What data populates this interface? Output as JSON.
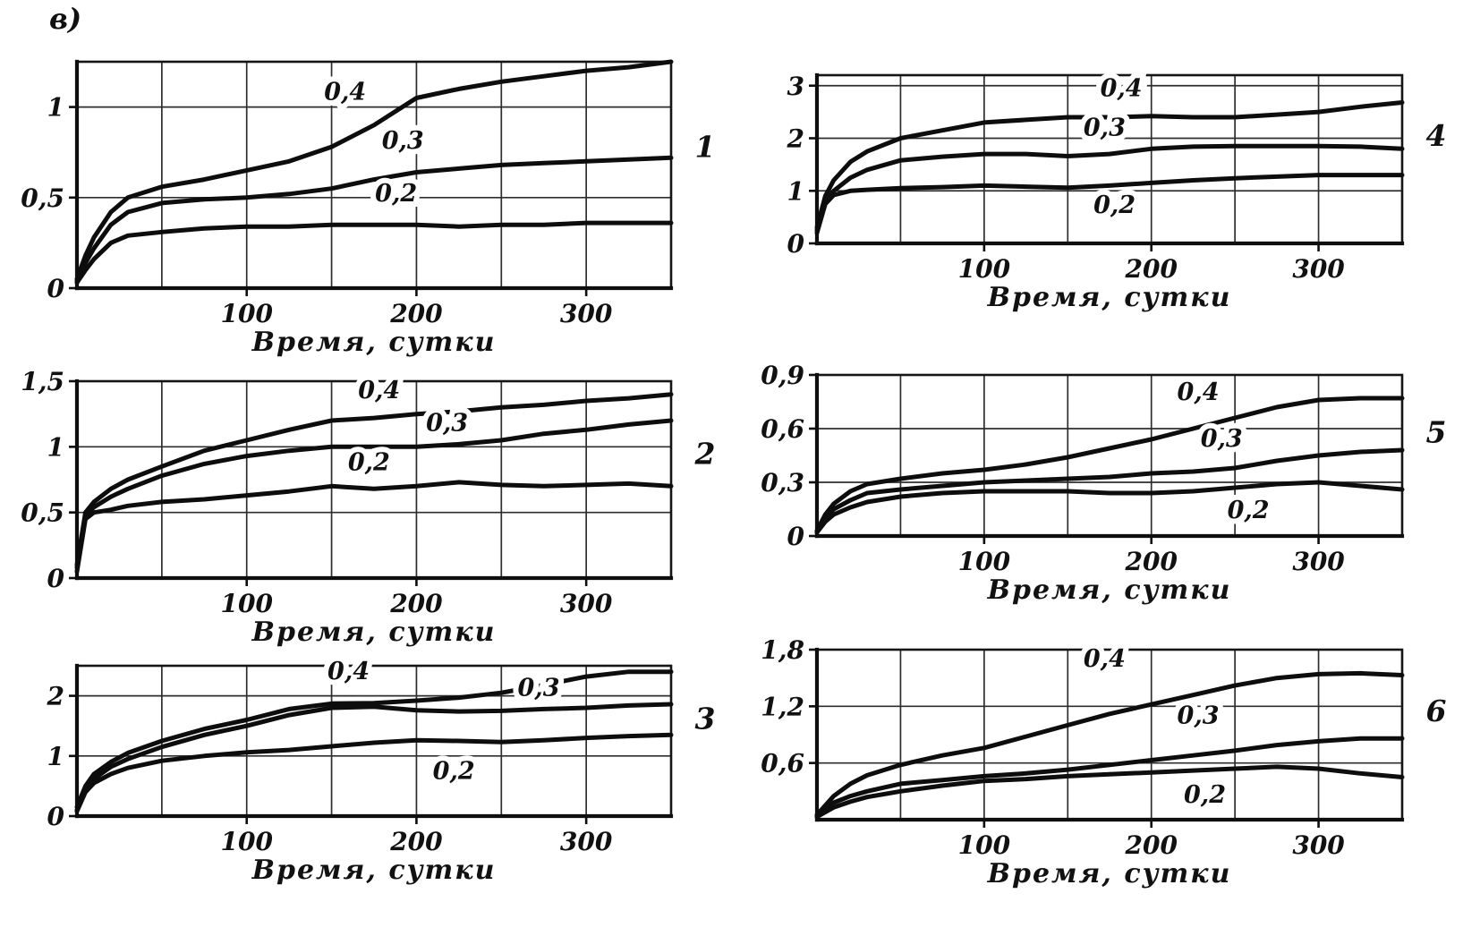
{
  "figure": {
    "panel_label": "в)"
  },
  "chart_data": [
    {
      "id": 1,
      "type": "line",
      "chart_label": "1",
      "title": "",
      "xlabel": "Время, сутки",
      "ylabel": "",
      "xlim": [
        0,
        350
      ],
      "ylim": [
        0,
        1.25
      ],
      "xticks": [
        100,
        200,
        300
      ],
      "yticks": [
        0,
        0.5,
        1
      ],
      "ytick_labels": [
        "0",
        "0,5",
        "1"
      ],
      "x_grid_step": 50,
      "grid": true,
      "legend_position": "none",
      "x": [
        0,
        5,
        10,
        20,
        30,
        50,
        75,
        100,
        125,
        150,
        175,
        200,
        225,
        250,
        275,
        300,
        325,
        350
      ],
      "series": [
        {
          "name": "0,4",
          "values": [
            0.05,
            0.18,
            0.28,
            0.42,
            0.5,
            0.56,
            0.6,
            0.65,
            0.7,
            0.78,
            0.9,
            1.05,
            1.1,
            1.14,
            1.17,
            1.2,
            1.22,
            1.25
          ],
          "label_xy": [
            158,
            1.04
          ]
        },
        {
          "name": "0,3",
          "values": [
            0.04,
            0.14,
            0.22,
            0.35,
            0.42,
            0.47,
            0.49,
            0.5,
            0.52,
            0.55,
            0.6,
            0.64,
            0.66,
            0.68,
            0.69,
            0.7,
            0.71,
            0.72
          ],
          "label_xy": [
            192,
            0.77
          ]
        },
        {
          "name": "0,2",
          "values": [
            0.03,
            0.1,
            0.16,
            0.25,
            0.29,
            0.31,
            0.33,
            0.34,
            0.34,
            0.35,
            0.35,
            0.35,
            0.34,
            0.35,
            0.35,
            0.36,
            0.36,
            0.36
          ],
          "label_xy": [
            188,
            0.48
          ]
        }
      ]
    },
    {
      "id": 2,
      "type": "line",
      "chart_label": "2",
      "title": "",
      "xlabel": "Время, сутки",
      "ylabel": "",
      "xlim": [
        0,
        350
      ],
      "ylim": [
        0,
        1.5
      ],
      "xticks": [
        100,
        200,
        300
      ],
      "yticks": [
        0,
        0.5,
        1,
        1.5
      ],
      "ytick_labels": [
        "0",
        "0,5",
        "1",
        "1,5"
      ],
      "x_grid_step": 50,
      "grid": true,
      "legend_position": "none",
      "x": [
        0,
        5,
        10,
        20,
        30,
        50,
        75,
        100,
        125,
        150,
        175,
        200,
        225,
        250,
        275,
        300,
        325,
        350
      ],
      "series": [
        {
          "name": "0,4",
          "values": [
            0.1,
            0.5,
            0.58,
            0.68,
            0.75,
            0.85,
            0.97,
            1.05,
            1.13,
            1.2,
            1.22,
            1.25,
            1.27,
            1.3,
            1.32,
            1.35,
            1.37,
            1.4
          ],
          "label_xy": [
            178,
            1.37
          ]
        },
        {
          "name": "0,3",
          "values": [
            0.08,
            0.48,
            0.54,
            0.62,
            0.68,
            0.78,
            0.87,
            0.93,
            0.97,
            1.0,
            1.0,
            1.0,
            1.02,
            1.05,
            1.1,
            1.13,
            1.17,
            1.2
          ],
          "label_xy": [
            218,
            1.12
          ]
        },
        {
          "name": "0,2",
          "values": [
            0.05,
            0.45,
            0.5,
            0.52,
            0.55,
            0.58,
            0.6,
            0.63,
            0.66,
            0.7,
            0.68,
            0.7,
            0.73,
            0.71,
            0.7,
            0.71,
            0.72,
            0.7
          ],
          "label_xy": [
            172,
            0.82
          ]
        }
      ]
    },
    {
      "id": 3,
      "type": "line",
      "chart_label": "3",
      "title": "",
      "xlabel": "Время, сутки",
      "ylabel": "",
      "xlim": [
        0,
        350
      ],
      "ylim": [
        0,
        2.5
      ],
      "xticks": [
        100,
        200,
        300
      ],
      "yticks": [
        0,
        1,
        2
      ],
      "ytick_labels": [
        "0",
        "1",
        "2"
      ],
      "x_grid_step": 50,
      "grid": true,
      "legend_position": "none",
      "x": [
        0,
        5,
        10,
        20,
        30,
        50,
        75,
        100,
        125,
        150,
        175,
        200,
        225,
        250,
        275,
        300,
        325,
        350
      ],
      "series": [
        {
          "name": "0,4",
          "values": [
            0.15,
            0.5,
            0.7,
            0.9,
            1.05,
            1.25,
            1.45,
            1.6,
            1.78,
            1.87,
            1.88,
            1.92,
            1.97,
            2.05,
            2.18,
            2.32,
            2.4,
            2.4
          ],
          "label_xy": [
            160,
            2.28
          ]
        },
        {
          "name": "0,3",
          "values": [
            0.1,
            0.45,
            0.62,
            0.82,
            0.95,
            1.15,
            1.35,
            1.5,
            1.68,
            1.8,
            1.82,
            1.76,
            1.74,
            1.75,
            1.78,
            1.8,
            1.84,
            1.86
          ],
          "label_xy": [
            272,
            2.0
          ]
        },
        {
          "name": "0,2",
          "values": [
            0.08,
            0.4,
            0.55,
            0.7,
            0.8,
            0.92,
            1.0,
            1.06,
            1.1,
            1.16,
            1.22,
            1.26,
            1.25,
            1.23,
            1.26,
            1.3,
            1.33,
            1.35
          ],
          "label_xy": [
            222,
            0.62
          ]
        }
      ]
    },
    {
      "id": 4,
      "type": "line",
      "chart_label": "4",
      "title": "",
      "xlabel": "Время, сутки",
      "ylabel": "",
      "xlim": [
        0,
        350
      ],
      "ylim": [
        0,
        3.2
      ],
      "xticks": [
        100,
        200,
        300
      ],
      "yticks": [
        0,
        1,
        2,
        3
      ],
      "ytick_labels": [
        "0",
        "1",
        "2",
        "3"
      ],
      "x_grid_step": 50,
      "grid": true,
      "legend_position": "none",
      "x": [
        0,
        5,
        10,
        20,
        30,
        50,
        75,
        100,
        125,
        150,
        175,
        200,
        225,
        250,
        275,
        300,
        325,
        350
      ],
      "series": [
        {
          "name": "0,4",
          "values": [
            0.3,
            0.9,
            1.2,
            1.55,
            1.75,
            2.0,
            2.15,
            2.3,
            2.35,
            2.4,
            2.4,
            2.42,
            2.4,
            2.4,
            2.45,
            2.5,
            2.6,
            2.68
          ],
          "label_xy": [
            182,
            2.8
          ]
        },
        {
          "name": "0,3",
          "values": [
            0.25,
            0.8,
            1.0,
            1.25,
            1.4,
            1.58,
            1.65,
            1.7,
            1.7,
            1.66,
            1.7,
            1.8,
            1.84,
            1.85,
            1.85,
            1.85,
            1.84,
            1.8
          ],
          "label_xy": [
            172,
            2.05
          ]
        },
        {
          "name": "0,2",
          "values": [
            0.2,
            0.75,
            0.92,
            1.0,
            1.02,
            1.05,
            1.07,
            1.1,
            1.08,
            1.06,
            1.1,
            1.15,
            1.2,
            1.24,
            1.27,
            1.3,
            1.3,
            1.3
          ],
          "label_xy": [
            178,
            0.58
          ]
        }
      ]
    },
    {
      "id": 5,
      "type": "line",
      "chart_label": "5",
      "title": "",
      "xlabel": "Время, сутки",
      "ylabel": "",
      "xlim": [
        0,
        350
      ],
      "ylim": [
        0,
        0.9
      ],
      "xticks": [
        100,
        200,
        300
      ],
      "yticks": [
        0,
        0.3,
        0.6,
        0.9
      ],
      "ytick_labels": [
        "0",
        "0,3",
        "0,6",
        "0,9"
      ],
      "x_grid_step": 50,
      "grid": true,
      "legend_position": "none",
      "x": [
        0,
        5,
        10,
        20,
        30,
        50,
        75,
        100,
        125,
        150,
        175,
        200,
        225,
        250,
        275,
        300,
        325,
        350
      ],
      "series": [
        {
          "name": "0,4",
          "values": [
            0.03,
            0.12,
            0.18,
            0.25,
            0.29,
            0.32,
            0.35,
            0.37,
            0.4,
            0.44,
            0.49,
            0.54,
            0.6,
            0.66,
            0.72,
            0.76,
            0.77,
            0.77
          ],
          "label_xy": [
            228,
            0.76
          ]
        },
        {
          "name": "0,3",
          "values": [
            0.02,
            0.1,
            0.15,
            0.2,
            0.24,
            0.26,
            0.28,
            0.3,
            0.31,
            0.32,
            0.33,
            0.35,
            0.36,
            0.38,
            0.42,
            0.45,
            0.47,
            0.48
          ],
          "label_xy": [
            242,
            0.5
          ]
        },
        {
          "name": "0,2",
          "values": [
            0.02,
            0.08,
            0.12,
            0.16,
            0.19,
            0.22,
            0.24,
            0.25,
            0.25,
            0.25,
            0.24,
            0.24,
            0.25,
            0.27,
            0.29,
            0.3,
            0.28,
            0.26
          ],
          "label_xy": [
            258,
            0.1
          ]
        }
      ]
    },
    {
      "id": 6,
      "type": "line",
      "chart_label": "6",
      "title": "",
      "xlabel": "Время, сутки",
      "ylabel": "",
      "xlim": [
        0,
        350
      ],
      "ylim": [
        0,
        1.8
      ],
      "xticks": [
        100,
        200,
        300
      ],
      "yticks": [
        0.6,
        1.2,
        1.8
      ],
      "ytick_labels": [
        "0,6",
        "1,2",
        "1,8"
      ],
      "x_grid_step": 50,
      "grid": true,
      "legend_position": "none",
      "x": [
        0,
        5,
        10,
        20,
        30,
        50,
        75,
        100,
        125,
        150,
        175,
        200,
        225,
        250,
        275,
        300,
        325,
        350
      ],
      "series": [
        {
          "name": "0,4",
          "values": [
            0.05,
            0.15,
            0.25,
            0.38,
            0.47,
            0.58,
            0.68,
            0.76,
            0.88,
            1.0,
            1.12,
            1.22,
            1.32,
            1.42,
            1.5,
            1.54,
            1.55,
            1.53
          ],
          "label_xy": [
            172,
            1.62
          ]
        },
        {
          "name": "0,3",
          "values": [
            0.04,
            0.12,
            0.18,
            0.25,
            0.3,
            0.38,
            0.42,
            0.46,
            0.49,
            0.53,
            0.58,
            0.63,
            0.68,
            0.73,
            0.79,
            0.83,
            0.86,
            0.86
          ],
          "label_xy": [
            228,
            1.02
          ]
        },
        {
          "name": "0,2",
          "values": [
            0.03,
            0.08,
            0.13,
            0.19,
            0.24,
            0.3,
            0.36,
            0.41,
            0.43,
            0.46,
            0.48,
            0.5,
            0.52,
            0.54,
            0.56,
            0.54,
            0.49,
            0.45
          ],
          "label_xy": [
            232,
            0.18
          ]
        }
      ]
    }
  ]
}
